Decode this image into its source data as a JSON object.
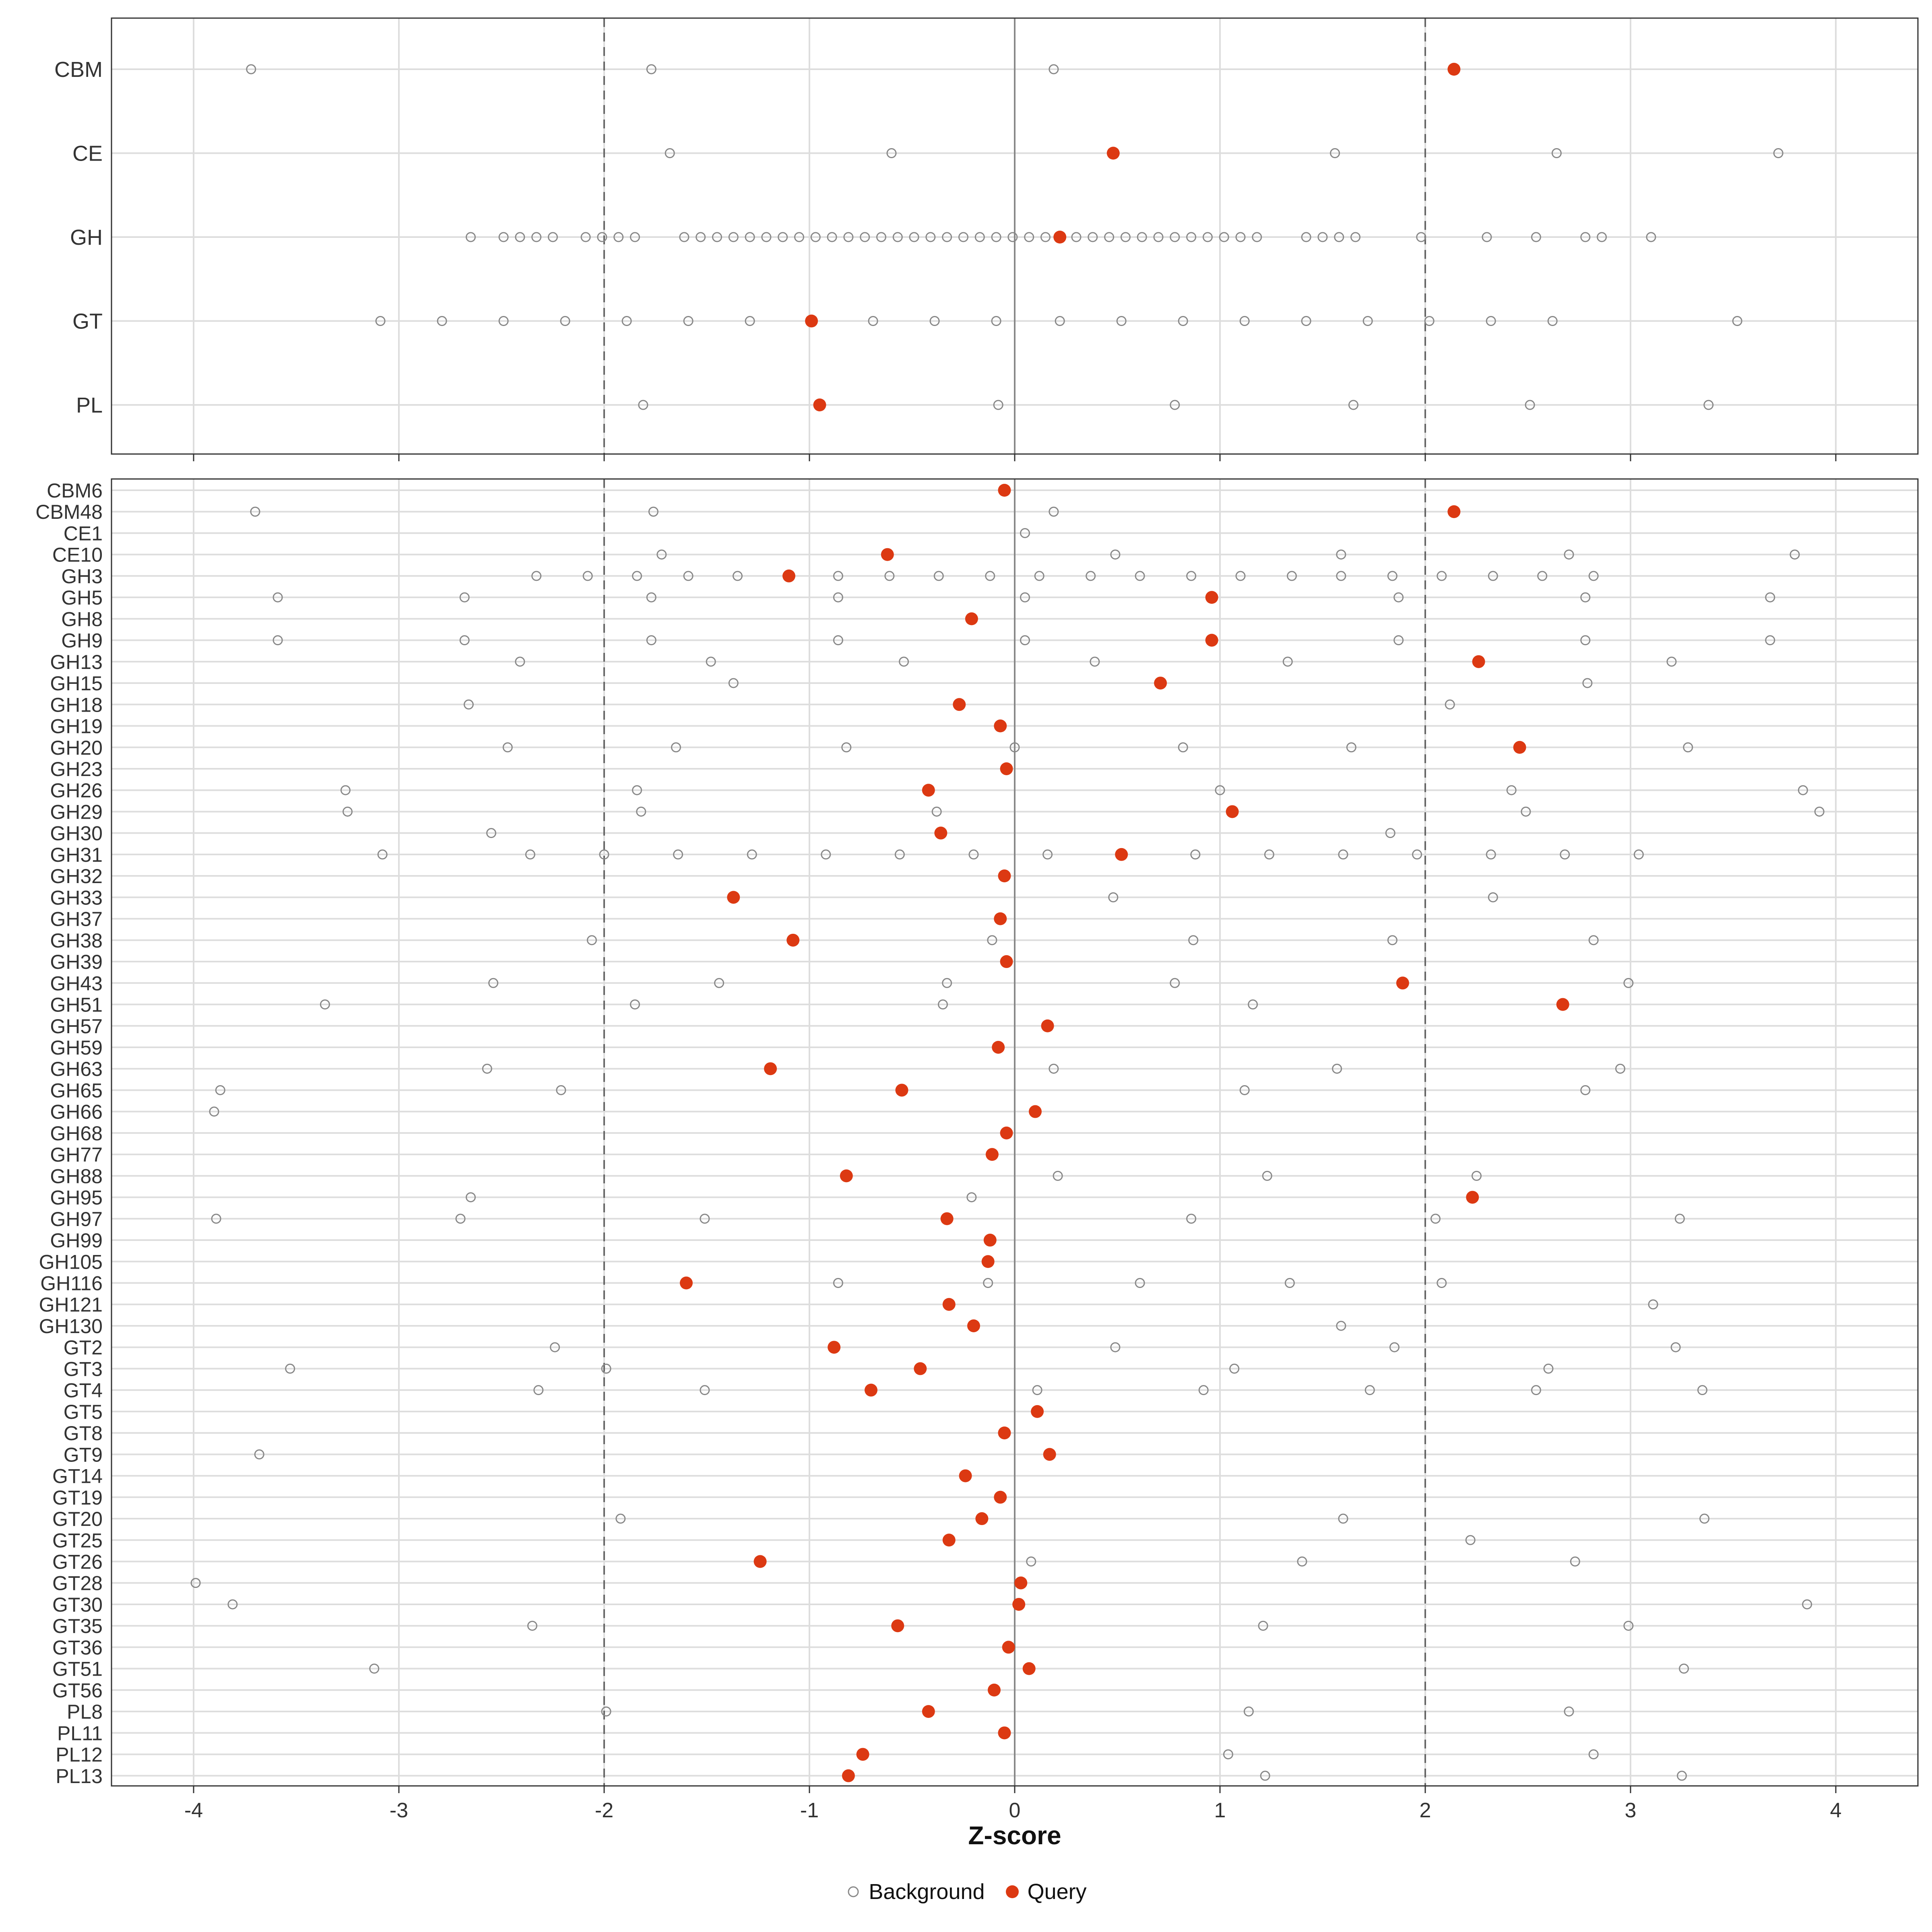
{
  "chart_data": [
    {
      "type": "scatter",
      "panel": "top",
      "categories": [
        "CBM",
        "CE",
        "GH",
        "GT",
        "PL"
      ],
      "xlim": [
        -4.4,
        4.4
      ],
      "x_ticks": [
        -4,
        -3,
        -2,
        -1,
        0,
        1,
        2,
        3,
        4
      ],
      "reference_lines": {
        "solid": [
          0
        ],
        "dashed": [
          -2,
          2
        ]
      },
      "grid": true,
      "series": [
        {
          "name": "Background",
          "color": "#888888",
          "points": {
            "CBM": [
              -3.72,
              -1.77,
              0.19
            ],
            "CE": [
              -1.68,
              -0.6,
              1.56,
              2.64,
              3.72
            ],
            "GH": [
              -2.65,
              -2.49,
              -2.41,
              -2.33,
              -2.25,
              -2.09,
              -2.01,
              -1.93,
              -1.85,
              -1.61,
              -1.53,
              -1.45,
              -1.37,
              -1.29,
              -1.21,
              -1.13,
              -1.05,
              -0.97,
              -0.89,
              -0.81,
              -0.73,
              -0.65,
              -0.57,
              -0.49,
              -0.41,
              -0.33,
              -0.25,
              -0.17,
              -0.09,
              -0.01,
              0.07,
              0.15,
              0.3,
              0.38,
              0.46,
              0.54,
              0.62,
              0.7,
              0.78,
              0.86,
              0.94,
              1.02,
              1.1,
              1.18,
              1.42,
              1.5,
              1.58,
              1.66,
              1.98,
              2.3,
              2.54,
              2.78,
              2.86,
              3.1
            ],
            "GT": [
              -3.09,
              -2.79,
              -2.49,
              -2.19,
              -1.89,
              -1.59,
              -1.29,
              -0.69,
              -0.39,
              -0.09,
              0.22,
              0.52,
              0.82,
              1.12,
              1.42,
              1.72,
              2.02,
              2.32,
              2.62,
              3.52
            ],
            "PL": [
              -1.81,
              -0.08,
              0.78,
              1.65,
              2.51,
              3.38
            ]
          }
        },
        {
          "name": "Query",
          "color": "#dc3912",
          "points": {
            "CBM": [
              2.14
            ],
            "CE": [
              0.48
            ],
            "GH": [
              0.22
            ],
            "GT": [
              -0.99
            ],
            "PL": [
              -0.95
            ]
          }
        }
      ]
    },
    {
      "type": "scatter",
      "panel": "bottom",
      "xlabel": "Z-score",
      "xlim": [
        -4.4,
        4.4
      ],
      "x_ticks": [
        -4,
        -3,
        -2,
        -1,
        0,
        1,
        2,
        3,
        4
      ],
      "reference_lines": {
        "solid": [
          0
        ],
        "dashed": [
          -2,
          2
        ]
      },
      "grid": true,
      "legend": "bottom",
      "rows": [
        {
          "label": "CBM6",
          "query": -0.05,
          "background": []
        },
        {
          "label": "CBM48",
          "query": 2.14,
          "background": [
            -3.7,
            -1.76,
            0.19
          ]
        },
        {
          "label": "CE1",
          "query": null,
          "background": [
            0.05
          ]
        },
        {
          "label": "CE10",
          "query": -0.62,
          "background": [
            -1.72,
            0.49,
            1.59,
            2.7,
            3.8
          ]
        },
        {
          "label": "GH3",
          "query": -1.1,
          "background": [
            -2.33,
            -2.08,
            -1.84,
            -1.59,
            -1.35,
            -0.86,
            -0.61,
            -0.37,
            -0.12,
            0.12,
            0.37,
            0.61,
            0.86,
            1.1,
            1.35,
            1.59,
            1.84,
            2.08,
            2.33,
            2.57,
            2.82
          ]
        },
        {
          "label": "GH5",
          "query": 0.96,
          "background": [
            -3.59,
            -2.68,
            -1.77,
            -0.86,
            0.05,
            1.87,
            2.78,
            3.68
          ]
        },
        {
          "label": "GH8",
          "query": -0.21,
          "background": []
        },
        {
          "label": "GH9",
          "query": 0.96,
          "background": [
            -3.59,
            -2.68,
            -1.77,
            -0.86,
            0.05,
            1.87,
            2.78,
            3.68
          ]
        },
        {
          "label": "GH13",
          "query": 2.26,
          "background": [
            -2.41,
            -1.48,
            -0.54,
            0.39,
            1.33,
            3.2
          ]
        },
        {
          "label": "GH15",
          "query": 0.71,
          "background": [
            -1.37,
            2.79
          ]
        },
        {
          "label": "GH18",
          "query": -0.27,
          "background": [
            -2.66,
            2.12
          ]
        },
        {
          "label": "GH19",
          "query": -0.07,
          "background": []
        },
        {
          "label": "GH20",
          "query": 2.46,
          "background": [
            -2.47,
            -1.65,
            -0.82,
            0.0,
            0.82,
            1.64,
            3.28
          ]
        },
        {
          "label": "GH23",
          "query": -0.04,
          "background": []
        },
        {
          "label": "GH26",
          "query": -0.42,
          "background": [
            -3.26,
            -1.84,
            1.0,
            2.42,
            3.84
          ]
        },
        {
          "label": "GH29",
          "query": 1.06,
          "background": [
            -3.25,
            -1.82,
            -0.38,
            2.49,
            3.92
          ]
        },
        {
          "label": "GH30",
          "query": -0.36,
          "background": [
            -2.55,
            1.83
          ]
        },
        {
          "label": "GH31",
          "query": 0.52,
          "background": [
            -3.08,
            -2.36,
            -2.0,
            -1.64,
            -1.28,
            -0.92,
            -0.56,
            -0.2,
            0.16,
            0.88,
            1.24,
            1.6,
            1.96,
            2.32,
            2.68,
            3.04
          ]
        },
        {
          "label": "GH32",
          "query": -0.05,
          "background": []
        },
        {
          "label": "GH33",
          "query": -1.37,
          "background": [
            0.48,
            2.33
          ]
        },
        {
          "label": "GH37",
          "query": -0.07,
          "background": []
        },
        {
          "label": "GH38",
          "query": -1.08,
          "background": [
            -2.06,
            -0.11,
            0.87,
            1.84,
            2.82
          ]
        },
        {
          "label": "GH39",
          "query": -0.04,
          "background": []
        },
        {
          "label": "GH43",
          "query": 1.89,
          "background": [
            -2.54,
            -1.44,
            -0.33,
            0.78,
            2.99
          ]
        },
        {
          "label": "GH51",
          "query": 2.67,
          "background": [
            -3.36,
            -1.85,
            -0.35,
            1.16
          ]
        },
        {
          "label": "GH57",
          "query": 0.16,
          "background": []
        },
        {
          "label": "GH59",
          "query": -0.08,
          "background": []
        },
        {
          "label": "GH63",
          "query": -1.19,
          "background": [
            -2.57,
            0.19,
            1.57,
            2.95
          ]
        },
        {
          "label": "GH65",
          "query": -0.55,
          "background": [
            -3.87,
            -2.21,
            1.12,
            2.78
          ]
        },
        {
          "label": "GH66",
          "query": 0.1,
          "background": [
            -3.9
          ]
        },
        {
          "label": "GH68",
          "query": -0.04,
          "background": []
        },
        {
          "label": "GH77",
          "query": -0.11,
          "background": []
        },
        {
          "label": "GH88",
          "query": -0.82,
          "background": [
            0.21,
            1.23,
            2.25
          ]
        },
        {
          "label": "GH95",
          "query": 2.23,
          "background": [
            -2.65,
            -0.21
          ]
        },
        {
          "label": "GH97",
          "query": -0.33,
          "background": [
            -3.89,
            -2.7,
            -1.51,
            0.86,
            2.05,
            3.24
          ]
        },
        {
          "label": "GH99",
          "query": -0.12,
          "background": []
        },
        {
          "label": "GH105",
          "query": -0.13,
          "background": []
        },
        {
          "label": "GH116",
          "query": -1.6,
          "background": [
            -0.86,
            -0.13,
            0.61,
            1.34,
            2.08
          ]
        },
        {
          "label": "GH121",
          "query": -0.32,
          "background": [
            3.11
          ]
        },
        {
          "label": "GH130",
          "query": -0.2,
          "background": [
            1.59
          ]
        },
        {
          "label": "GT2",
          "query": -0.88,
          "background": [
            -2.24,
            0.49,
            1.85,
            3.22
          ]
        },
        {
          "label": "GT3",
          "query": -0.46,
          "background": [
            -3.53,
            -1.99,
            1.07,
            2.6
          ]
        },
        {
          "label": "GT4",
          "query": -0.7,
          "background": [
            -2.32,
            -1.51,
            0.11,
            0.92,
            1.73,
            2.54,
            3.35
          ]
        },
        {
          "label": "GT5",
          "query": 0.11,
          "background": []
        },
        {
          "label": "GT8",
          "query": -0.05,
          "background": []
        },
        {
          "label": "GT9",
          "query": 0.17,
          "background": [
            -3.68
          ]
        },
        {
          "label": "GT14",
          "query": -0.24,
          "background": []
        },
        {
          "label": "GT19",
          "query": -0.07,
          "background": []
        },
        {
          "label": "GT20",
          "query": -0.16,
          "background": [
            -1.92,
            1.6,
            3.36
          ]
        },
        {
          "label": "GT25",
          "query": -0.32,
          "background": [
            2.22
          ]
        },
        {
          "label": "GT26",
          "query": -1.24,
          "background": [
            0.08,
            1.4,
            2.73
          ]
        },
        {
          "label": "GT28",
          "query": 0.03,
          "background": [
            -3.99
          ]
        },
        {
          "label": "GT30",
          "query": 0.02,
          "background": [
            -3.81,
            3.86
          ]
        },
        {
          "label": "GT35",
          "query": -0.57,
          "background": [
            -2.35,
            1.21,
            2.99
          ]
        },
        {
          "label": "GT36",
          "query": -0.03,
          "background": []
        },
        {
          "label": "GT51",
          "query": 0.07,
          "background": [
            -3.12,
            3.26
          ]
        },
        {
          "label": "GT56",
          "query": -0.1,
          "background": []
        },
        {
          "label": "PL8",
          "query": -0.42,
          "background": [
            -1.99,
            1.14,
            2.7
          ]
        },
        {
          "label": "PL11",
          "query": -0.05,
          "background": []
        },
        {
          "label": "PL12",
          "query": -0.74,
          "background": [
            1.04,
            2.82
          ]
        },
        {
          "label": "PL13",
          "query": -0.81,
          "background": [
            1.22,
            3.25
          ]
        }
      ]
    }
  ],
  "legend": {
    "background_label": "Background",
    "query_label": "Query",
    "background_color": "#888888",
    "query_color": "#dc3912"
  }
}
